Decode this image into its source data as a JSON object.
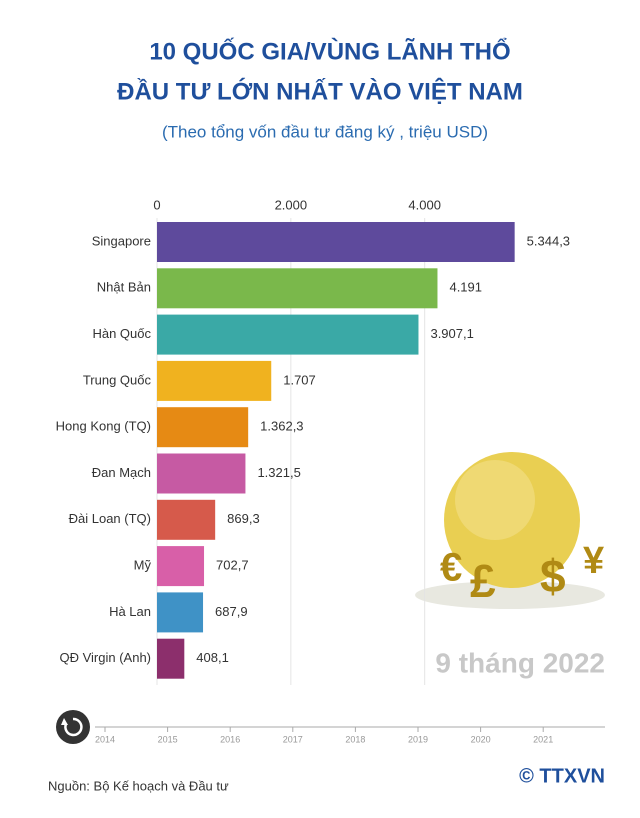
{
  "chart_data": {
    "type": "bar",
    "orientation": "horizontal",
    "title": "10 QUỐC GIA/VÙNG LÃNH THỔ",
    "title_line2": "ĐẦU TƯ LỚN NHẤT VÀO VIỆT NAM",
    "subtitle": "(Theo tổng vốn đầu tư đăng ký , triệu USD)",
    "categories": [
      "Singapore",
      "Nhật Bản",
      "Hàn Quốc",
      "Trung Quốc",
      "Hong Kong (TQ)",
      "Đan Mạch",
      "Đài Loan (TQ)",
      "Mỹ",
      "Hà Lan",
      "QĐ Virgin (Anh)"
    ],
    "values": [
      5344.3,
      4191,
      3907.1,
      1707,
      1362.3,
      1321.5,
      869.3,
      702.7,
      687.9,
      408.1
    ],
    "value_labels": [
      "5.344,3",
      "4.191",
      "3.907,1",
      "1.707",
      "1.362,3",
      "1.321,5",
      "869,3",
      "702,7",
      "687,9",
      "408,1"
    ],
    "colors": [
      "#5e4a9c",
      "#7ab84b",
      "#3aa9a6",
      "#f0b21f",
      "#e68a14",
      "#c65aa3",
      "#d65a4b",
      "#d85fa8",
      "#3f92c6",
      "#8c2f6c"
    ],
    "xlim": [
      0,
      6500
    ],
    "xticks": [
      0,
      {
        "value": 2000,
        "label": "2.000"
      },
      {
        "value": 4000,
        "label": "4.000"
      }
    ],
    "grid": true,
    "annotation": "9 tháng 2022",
    "timeline_labels": [
      "2014",
      "2015",
      "2016",
      "2017",
      "2018",
      "2019",
      "2020",
      "2021"
    ],
    "source": "Nguồn: Bộ Kế hoạch và Đầu tư",
    "logo": "© TTXVN"
  }
}
